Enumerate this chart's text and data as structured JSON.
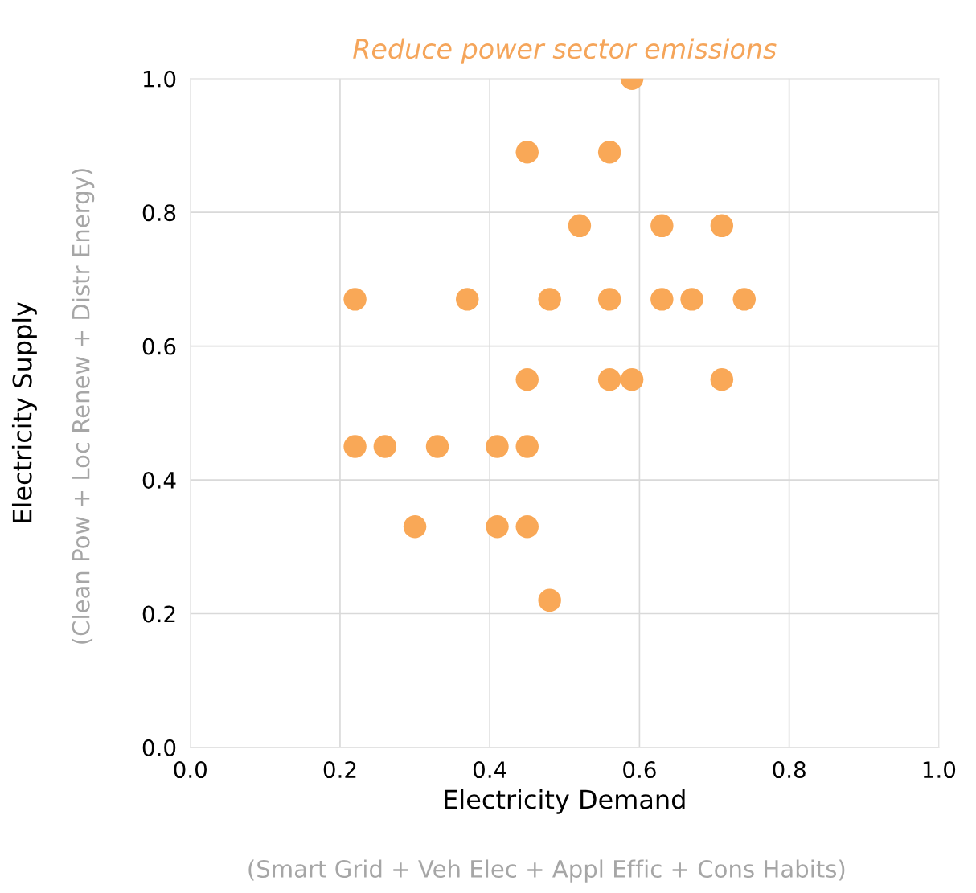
{
  "chart_data": {
    "type": "scatter",
    "title": "Reduce power sector emissions",
    "xlabel": "Electricity Demand",
    "ylabel": "Electricity Supply",
    "annotations": [
      "(Smart Grid + Veh Elec + Appl Effic + Cons Habits)",
      "(Clean Pow + Loc Renew + Distr Energy)"
    ],
    "series": [
      {
        "color": "#f9a857",
        "x": [
          0.59,
          0.45,
          0.56,
          0.52,
          0.63,
          0.71,
          0.22,
          0.37,
          0.48,
          0.56,
          0.63,
          0.67,
          0.74,
          0.45,
          0.56,
          0.59,
          0.71,
          0.22,
          0.26,
          0.33,
          0.41,
          0.45,
          0.3,
          0.41,
          0.45,
          0.48
        ],
        "values": [
          1.0,
          0.89,
          0.89,
          0.78,
          0.78,
          0.78,
          0.67,
          0.67,
          0.67,
          0.67,
          0.67,
          0.67,
          0.67,
          0.55,
          0.55,
          0.55,
          0.55,
          0.45,
          0.45,
          0.45,
          0.45,
          0.45,
          0.33,
          0.33,
          0.33,
          0.22
        ]
      }
    ],
    "xlim": [
      0,
      1
    ],
    "ylim": [
      0,
      1
    ],
    "xticks": [
      {
        "value": 0,
        "label": "0.0"
      },
      {
        "value": 0.2,
        "label": "0.2"
      },
      {
        "value": 0.4,
        "label": "0.4"
      },
      {
        "value": 0.6,
        "label": "0.6"
      },
      {
        "value": 0.8,
        "label": "0.8"
      },
      {
        "value": 1,
        "label": "1.0"
      }
    ],
    "yticks": [
      {
        "value": 0,
        "label": "0.0"
      },
      {
        "value": 0.2,
        "label": "0.2"
      },
      {
        "value": 0.4,
        "label": "0.4"
      },
      {
        "value": 0.6,
        "label": "0.6"
      },
      {
        "value": 0.8,
        "label": "0.8"
      },
      {
        "value": 1,
        "label": "1.0"
      }
    ],
    "grid": true,
    "marker": "circle"
  }
}
